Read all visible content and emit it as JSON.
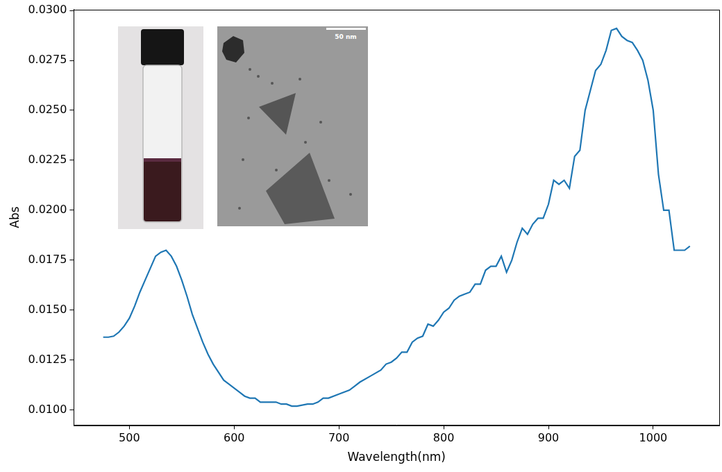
{
  "chart_data": {
    "type": "line",
    "x_label": "Wavelength(nm)",
    "y_label": "Abs",
    "annotations": [
      "50 nm"
    ],
    "x": [
      475,
      480,
      485,
      490,
      495,
      500,
      505,
      510,
      515,
      520,
      525,
      530,
      535,
      540,
      545,
      550,
      555,
      560,
      565,
      570,
      575,
      580,
      585,
      590,
      595,
      600,
      605,
      610,
      615,
      620,
      625,
      630,
      640,
      645,
      650,
      655,
      660,
      670,
      675,
      680,
      685,
      690,
      700,
      710,
      715,
      720,
      730,
      740,
      745,
      750,
      755,
      760,
      765,
      770,
      775,
      780,
      785,
      790,
      795,
      800,
      805,
      810,
      815,
      820,
      825,
      830,
      835,
      840,
      845,
      850,
      855,
      860,
      865,
      870,
      875,
      880,
      885,
      890,
      895,
      900,
      905,
      910,
      915,
      920,
      925,
      930,
      935,
      940,
      945,
      950,
      955,
      960,
      965,
      970,
      975,
      980,
      985,
      990,
      995,
      1000,
      1005,
      1010,
      1015,
      1020,
      1025,
      1030,
      1035
    ],
    "values": [
      0.01365,
      0.01365,
      0.0137,
      0.0139,
      0.0142,
      0.0146,
      0.0152,
      0.0159,
      0.0165,
      0.0171,
      0.0177,
      0.0179,
      0.018,
      0.0177,
      0.0172,
      0.0165,
      0.0157,
      0.0148,
      0.0141,
      0.0134,
      0.0128,
      0.0123,
      0.0119,
      0.0115,
      0.0113,
      0.0111,
      0.0109,
      0.0107,
      0.0106,
      0.0106,
      0.0104,
      0.0104,
      0.0104,
      0.0103,
      0.0103,
      0.0102,
      0.0102,
      0.0103,
      0.0103,
      0.0104,
      0.0106,
      0.0106,
      0.0108,
      0.011,
      0.0112,
      0.0114,
      0.0117,
      0.012,
      0.0123,
      0.0124,
      0.0126,
      0.0129,
      0.0129,
      0.0134,
      0.0136,
      0.0137,
      0.0143,
      0.0142,
      0.0145,
      0.0149,
      0.0151,
      0.0155,
      0.0157,
      0.0158,
      0.0159,
      0.0163,
      0.0163,
      0.017,
      0.0172,
      0.0172,
      0.0177,
      0.0169,
      0.0175,
      0.0184,
      0.0191,
      0.0188,
      0.0193,
      0.0196,
      0.0196,
      0.0203,
      0.0215,
      0.0213,
      0.0215,
      0.0211,
      0.0227,
      0.023,
      0.025,
      0.026,
      0.027,
      0.0273,
      0.028,
      0.029,
      0.0291,
      0.0287,
      0.0285,
      0.0284,
      0.028,
      0.0275,
      0.0265,
      0.025,
      0.0218,
      0.02,
      0.02,
      0.018,
      0.018,
      0.018,
      0.0182
    ],
    "color": "#1f77b4",
    "xlim": [
      447,
      1063
    ],
    "xticks": [
      500,
      600,
      700,
      800,
      900,
      1000
    ],
    "ylim": [
      0.00925,
      0.03005
    ],
    "yticks": [
      {
        "value": 0.01,
        "label": "0.0100"
      },
      {
        "value": 0.0125,
        "label": "0.0125"
      },
      {
        "value": 0.015,
        "label": "0.0150"
      },
      {
        "value": 0.0175,
        "label": "0.0175"
      },
      {
        "value": 0.02,
        "label": "0.0200"
      },
      {
        "value": 0.0225,
        "label": "0.0225"
      },
      {
        "value": 0.025,
        "label": "0.0250"
      },
      {
        "value": 0.0275,
        "label": "0.0275"
      },
      {
        "value": 0.03,
        "label": "0.0300"
      }
    ],
    "grid": false
  }
}
